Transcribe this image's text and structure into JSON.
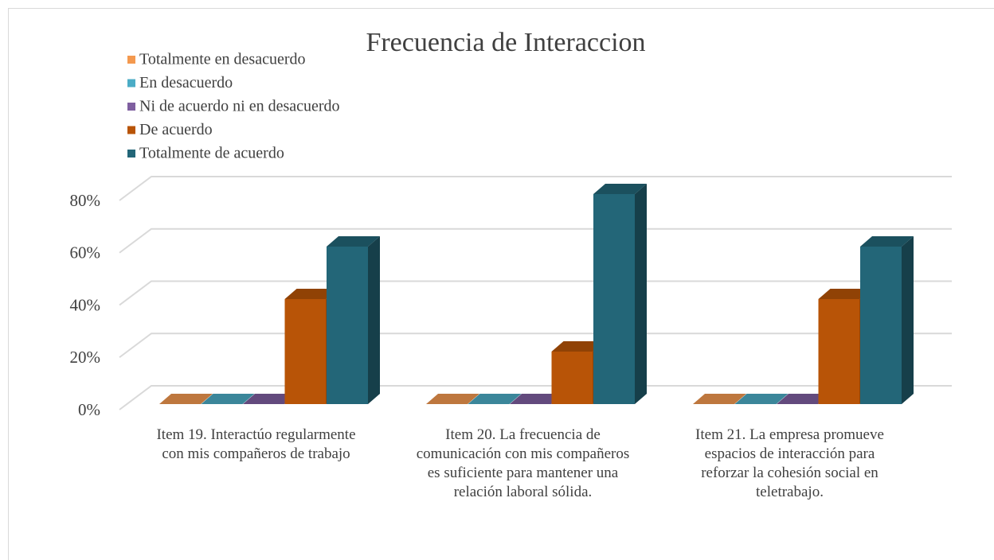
{
  "chart_data": {
    "type": "bar3d",
    "title": "Frecuencia de Interaccion",
    "categories": [
      "Item 19. Interactúo regularmente con mis compañeros de trabajo",
      "Item 20. La frecuencia de comunicación con mis compañeros es suficiente para mantener una relación laboral sólida.",
      "Item 21. La empresa promueve espacios de interacción para reforzar la cohesión social en teletrabajo."
    ],
    "series": [
      {
        "name": "Totalmente en desacuerdo",
        "color": "#f4994f",
        "values": [
          0,
          0,
          0
        ]
      },
      {
        "name": "En desacuerdo",
        "color": "#4bacc6",
        "values": [
          0,
          0,
          0
        ]
      },
      {
        "name": "Ni de acuerdo ni en desacuerdo",
        "color": "#7f5fa0",
        "values": [
          0,
          0,
          0
        ]
      },
      {
        "name": "De acuerdo",
        "color": "#b85407",
        "values": [
          40,
          20,
          40
        ]
      },
      {
        "name": "Totalmente de acuerdo",
        "color": "#236678",
        "values": [
          60,
          80,
          60
        ]
      }
    ],
    "ylim": [
      0,
      80
    ],
    "yticks": [
      {
        "value": 0,
        "label": "0%"
      },
      {
        "value": 20,
        "label": "20%"
      },
      {
        "value": 40,
        "label": "40%"
      },
      {
        "value": 60,
        "label": "60%"
      },
      {
        "value": 80,
        "label": "80%"
      }
    ],
    "grid": true,
    "legend": "top-left"
  }
}
